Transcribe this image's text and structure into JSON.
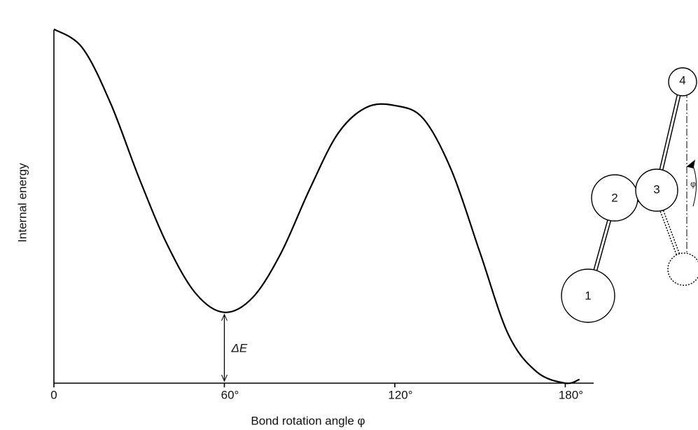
{
  "chart_data": {
    "type": "line",
    "x_label": "Bond rotation angle φ",
    "y_label": "Internal energy",
    "x": [
      0,
      10,
      20,
      30,
      40,
      50,
      60,
      70,
      80,
      90,
      100,
      110,
      120,
      130,
      140,
      150,
      160,
      170,
      180,
      185
    ],
    "series": [
      {
        "color": "#000000",
        "values": [
          0.95,
          0.9,
          0.75,
          0.55,
          0.37,
          0.24,
          0.19,
          0.23,
          0.35,
          0.52,
          0.67,
          0.74,
          0.745,
          0.71,
          0.57,
          0.35,
          0.13,
          0.03,
          0,
          0.01
        ]
      }
    ],
    "xlim": [
      0,
      190
    ],
    "ylim": [
      0,
      1
    ],
    "xticks": [
      0,
      {
        "value": 60,
        "label": "60°"
      },
      {
        "value": 120,
        "label": "120°"
      },
      {
        "value": 180,
        "label": "180°"
      }
    ],
    "annotation": {
      "x": 60,
      "label": "ΔE"
    },
    "diagram_labels": [
      "1",
      "2",
      "3",
      "4",
      "φ"
    ]
  }
}
